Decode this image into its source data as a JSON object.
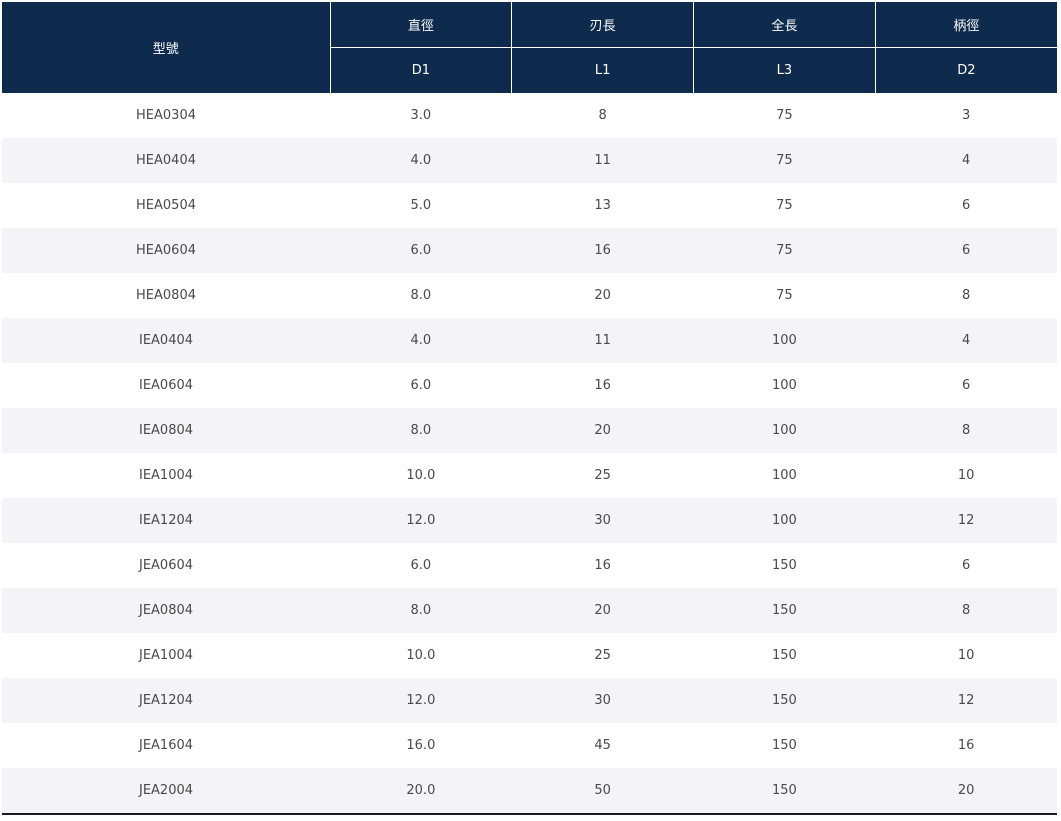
{
  "table": {
    "header": {
      "model": "型號",
      "groups": [
        "直徑",
        "刃長",
        "全長",
        "柄徑"
      ],
      "symbols": [
        "D1",
        "L1",
        "L3",
        "D2"
      ]
    },
    "rows": [
      [
        "HEA0304",
        "3.0",
        "8",
        "75",
        "3"
      ],
      [
        "HEA0404",
        "4.0",
        "11",
        "75",
        "4"
      ],
      [
        "HEA0504",
        "5.0",
        "13",
        "75",
        "6"
      ],
      [
        "HEA0604",
        "6.0",
        "16",
        "75",
        "6"
      ],
      [
        "HEA0804",
        "8.0",
        "20",
        "75",
        "8"
      ],
      [
        "IEA0404",
        "4.0",
        "11",
        "100",
        "4"
      ],
      [
        "IEA0604",
        "6.0",
        "16",
        "100",
        "6"
      ],
      [
        "IEA0804",
        "8.0",
        "20",
        "100",
        "8"
      ],
      [
        "IEA1004",
        "10.0",
        "25",
        "100",
        "10"
      ],
      [
        "IEA1204",
        "12.0",
        "30",
        "100",
        "12"
      ],
      [
        "JEA0604",
        "6.0",
        "16",
        "150",
        "6"
      ],
      [
        "JEA0804",
        "8.0",
        "20",
        "150",
        "8"
      ],
      [
        "JEA1004",
        "10.0",
        "25",
        "150",
        "10"
      ],
      [
        "JEA1204",
        "12.0",
        "30",
        "150",
        "12"
      ],
      [
        "JEA1604",
        "16.0",
        "45",
        "150",
        "16"
      ],
      [
        "JEA2004",
        "20.0",
        "50",
        "150",
        "20"
      ]
    ]
  },
  "colors": {
    "header_bg": "#0e2a4d",
    "header_text": "#ffffff",
    "stripe_bg": "#f3f3f8",
    "cell_text": "#4a4a4a"
  }
}
